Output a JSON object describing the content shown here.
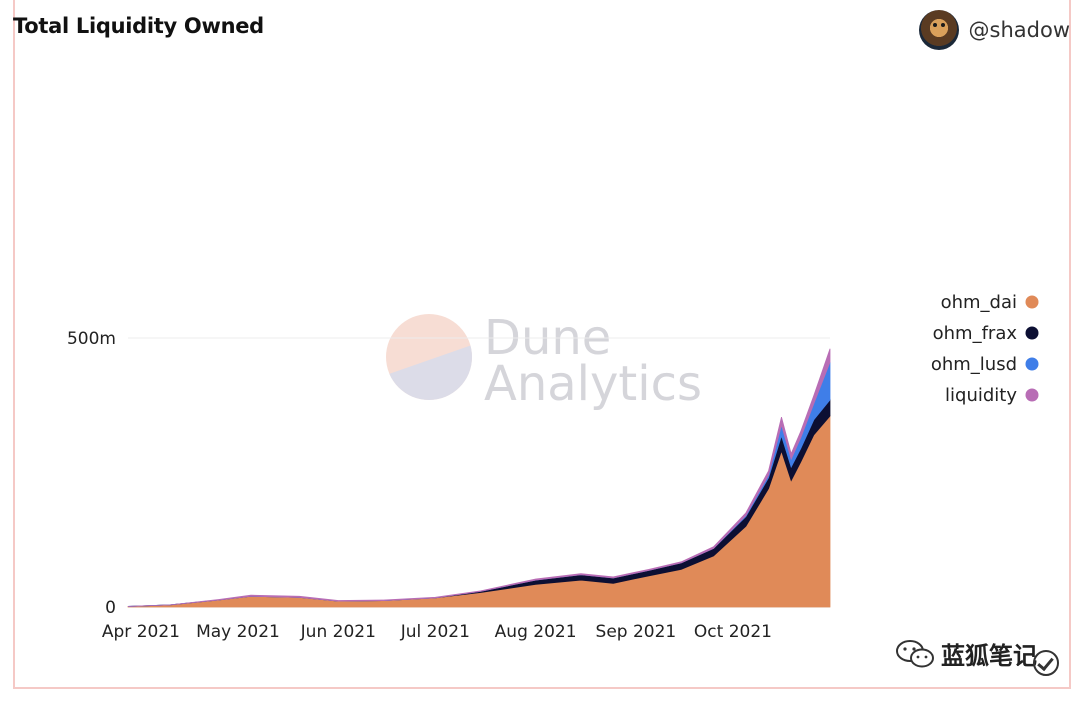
{
  "header": {
    "title": "Total Liquidity Owned",
    "username": "@shadow"
  },
  "watermark": {
    "line1": "Dune",
    "line2": "Analytics"
  },
  "footer": {
    "wechat_text": "蓝狐笔记"
  },
  "colors": {
    "ohm_dai": "#e08a58",
    "ohm_frax": "#0c0f33",
    "ohm_lusd": "#3f7ee8",
    "liquidity": "#b86db5"
  },
  "chart_data": {
    "type": "area",
    "title": "Total Liquidity Owned",
    "y_ticks": [
      {
        "value": 0,
        "label": "0"
      },
      {
        "value": 500,
        "label": "500m"
      }
    ],
    "x_ticks": [
      {
        "date": "2021-04-01",
        "label": "Apr 2021"
      },
      {
        "date": "2021-05-01",
        "label": "May 2021"
      },
      {
        "date": "2021-06-01",
        "label": "Jun 2021"
      },
      {
        "date": "2021-07-01",
        "label": "Jul 2021"
      },
      {
        "date": "2021-08-01",
        "label": "Aug 2021"
      },
      {
        "date": "2021-09-01",
        "label": "Sep 2021"
      },
      {
        "date": "2021-10-01",
        "label": "Oct 2021"
      }
    ],
    "x_range": [
      "2021-03-28",
      "2021-10-31"
    ],
    "ylim": [
      0,
      500
    ],
    "y_unit": "m",
    "legend_position": "right",
    "x": [
      "2021-03-28",
      "2021-04-10",
      "2021-04-25",
      "2021-05-05",
      "2021-05-20",
      "2021-06-01",
      "2021-06-15",
      "2021-07-01",
      "2021-07-15",
      "2021-08-01",
      "2021-08-15",
      "2021-08-25",
      "2021-09-05",
      "2021-09-15",
      "2021-09-25",
      "2021-10-05",
      "2021-10-12",
      "2021-10-16",
      "2021-10-19",
      "2021-10-22",
      "2021-10-26",
      "2021-10-31"
    ],
    "series": [
      {
        "name": "ohm_dai",
        "values": [
          1,
          4,
          13,
          20,
          18,
          11,
          12,
          17,
          27,
          42,
          50,
          44,
          58,
          70,
          95,
          150,
          220,
          290,
          235,
          270,
          320,
          355
        ]
      },
      {
        "name": "ohm_frax",
        "values": [
          0,
          0,
          0,
          0,
          0,
          0,
          0,
          0,
          2,
          8,
          10,
          10,
          10,
          12,
          14,
          18,
          20,
          28,
          25,
          25,
          28,
          30
        ]
      },
      {
        "name": "ohm_lusd",
        "values": [
          0,
          0,
          0,
          0,
          0,
          0,
          0,
          0,
          0,
          0,
          0,
          0,
          0,
          0,
          0,
          2,
          5,
          20,
          15,
          20,
          30,
          70
        ]
      },
      {
        "name": "liquidity",
        "values": [
          0,
          0,
          1,
          2,
          2,
          1,
          1,
          1,
          1,
          2,
          2,
          2,
          2,
          2,
          3,
          5,
          8,
          15,
          10,
          12,
          15,
          25
        ]
      }
    ]
  }
}
